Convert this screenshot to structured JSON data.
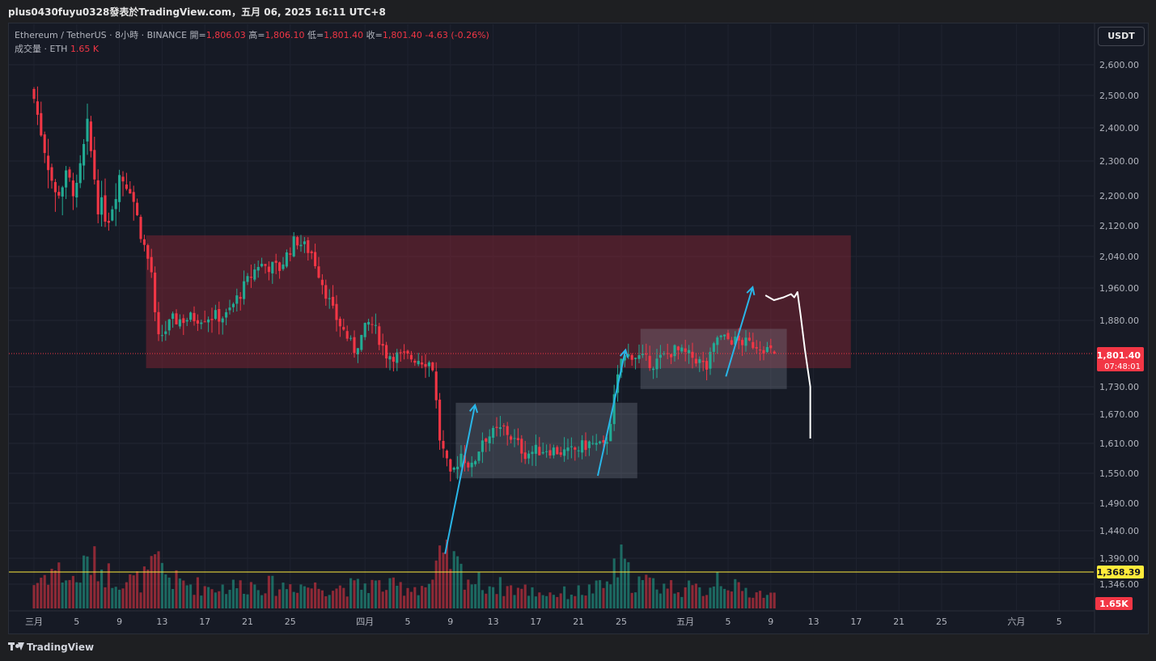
{
  "header": {
    "publish_line": "plus0430fuyu0328發表於TradingView.com，五月 06, 2025 16:11 UTC+8"
  },
  "legend": {
    "symbol": "Ethereum / TetherUS · 8小時 · BINANCE",
    "open_label": "開=",
    "open_value": "1,806.03",
    "high_label": "高=",
    "high_value": "1,806.10",
    "low_label": "低=",
    "low_value": "1,801.40",
    "close_label": "收=",
    "close_value": "1,801.40",
    "change": "-4.63 (-0.26%)",
    "volume_label": "成交量 · ETH",
    "volume_value": "1.65 K"
  },
  "currency_button": "USDT",
  "footer": {
    "brand": "TradingView"
  },
  "colors": {
    "up": "#22ab94",
    "down": "#f23645",
    "zone": "#7a2533",
    "range_box": "#8d93a0",
    "arrow": "#29b6e8",
    "drawing": "#ffffff",
    "yellow_line": "#ffeb3b",
    "background": "#161a25"
  },
  "chart_data": {
    "type": "candlestick",
    "symbol": "ETHUSDT",
    "y_ticks": [
      2600,
      2500,
      2400,
      2300,
      2200,
      2120,
      2040,
      1960,
      1880,
      1730,
      1670,
      1610,
      1550,
      1490,
      1440,
      1390,
      1346
    ],
    "y_tick_labels": [
      "2,600.00",
      "2,500.00",
      "2,400.00",
      "2,300.00",
      "2,200.00",
      "2,120.00",
      "2,040.00",
      "1,960.00",
      "1,880.00",
      "1,730.00",
      "1,670.00",
      "1,610.00",
      "1,550.00",
      "1,490.00",
      "1,440.00",
      "1,390.00",
      "1,346.00"
    ],
    "x_tick_labels": [
      "三月",
      "5",
      "9",
      "13",
      "17",
      "21",
      "25",
      "四月",
      "5",
      "9",
      "13",
      "17",
      "21",
      "25",
      "五月",
      "5",
      "9",
      "13",
      "17",
      "21",
      "25",
      "六月",
      "5"
    ],
    "x_tick_days": [
      0,
      4,
      8,
      12,
      16,
      20,
      24,
      31,
      35,
      39,
      43,
      47,
      51,
      55,
      61,
      65,
      69,
      73,
      77,
      81,
      85,
      92,
      96
    ],
    "last_price": 1801.4,
    "last_price_label": "1,801.40",
    "countdown_label": "07:48:01",
    "horizontal_line": 1368.39,
    "horizontal_line_label": "1,368.39",
    "volume_badge": "1.65K",
    "resistance_zone": {
      "from_day": 10.5,
      "to_day": 76.5,
      "top": 2095,
      "bottom": 1770
    },
    "range_boxes": [
      {
        "from_day": 39.5,
        "to_day": 56.5,
        "top": 1695,
        "bottom": 1540
      },
      {
        "from_day": 56.8,
        "to_day": 70.5,
        "top": 1860,
        "bottom": 1725
      }
    ],
    "arrows": [
      {
        "from": [
          38.5,
          1398
        ],
        "to": [
          41.3,
          1690
        ]
      },
      {
        "from": [
          52.8,
          1545
        ],
        "to": [
          55.4,
          1810
        ]
      },
      {
        "from": [
          64.8,
          1752
        ],
        "to": [
          67.3,
          1962
        ]
      }
    ],
    "drawing_path": [
      [
        68.5,
        1942
      ],
      [
        69.3,
        1930
      ],
      [
        70.2,
        1937
      ],
      [
        70.9,
        1945
      ],
      [
        71.2,
        1937
      ],
      [
        71.5,
        1950
      ],
      [
        71.8,
        1892
      ],
      [
        72.2,
        1810
      ],
      [
        72.7,
        1730
      ],
      [
        72.7,
        1620
      ]
    ],
    "anchors": [
      {
        "day": 0.0,
        "price": 2490,
        "vol": 16
      },
      {
        "day": 1.0,
        "price": 2340,
        "vol": 22
      },
      {
        "day": 2.0,
        "price": 2200,
        "vol": 26
      },
      {
        "day": 3.0,
        "price": 2250,
        "vol": 20
      },
      {
        "day": 4.0,
        "price": 2210,
        "vol": 18
      },
      {
        "day": 5.0,
        "price": 2400,
        "vol": 30
      },
      {
        "day": 6.0,
        "price": 2180,
        "vol": 28
      },
      {
        "day": 7.0,
        "price": 2140,
        "vol": 22
      },
      {
        "day": 8.0,
        "price": 2260,
        "vol": 20
      },
      {
        "day": 9.0,
        "price": 2230,
        "vol": 18
      },
      {
        "day": 10.0,
        "price": 2100,
        "vol": 18
      },
      {
        "day": 11.0,
        "price": 2000,
        "vol": 24
      },
      {
        "day": 11.5,
        "price": 1830,
        "vol": 30
      },
      {
        "day": 13.0,
        "price": 1880,
        "vol": 18
      },
      {
        "day": 16.0,
        "price": 1890,
        "vol": 14
      },
      {
        "day": 18.0,
        "price": 1890,
        "vol": 14
      },
      {
        "day": 21.0,
        "price": 2020,
        "vol": 16
      },
      {
        "day": 23.0,
        "price": 2010,
        "vol": 14
      },
      {
        "day": 24.5,
        "price": 2085,
        "vol": 16
      },
      {
        "day": 26.0,
        "price": 2050,
        "vol": 14
      },
      {
        "day": 28.0,
        "price": 1900,
        "vol": 14
      },
      {
        "day": 30.0,
        "price": 1810,
        "vol": 14
      },
      {
        "day": 31.5,
        "price": 1880,
        "vol": 16
      },
      {
        "day": 33.0,
        "price": 1800,
        "vol": 14
      },
      {
        "day": 36.0,
        "price": 1790,
        "vol": 14
      },
      {
        "day": 37.3,
        "price": 1780,
        "vol": 16
      },
      {
        "day": 38.0,
        "price": 1620,
        "vol": 30
      },
      {
        "day": 39.0,
        "price": 1540,
        "vol": 32
      },
      {
        "day": 40.0,
        "price": 1590,
        "vol": 24
      },
      {
        "day": 41.0,
        "price": 1560,
        "vol": 18
      },
      {
        "day": 42.0,
        "price": 1620,
        "vol": 16
      },
      {
        "day": 44.0,
        "price": 1640,
        "vol": 14
      },
      {
        "day": 46.0,
        "price": 1590,
        "vol": 12
      },
      {
        "day": 48.0,
        "price": 1600,
        "vol": 10
      },
      {
        "day": 50.0,
        "price": 1590,
        "vol": 10
      },
      {
        "day": 52.0,
        "price": 1610,
        "vol": 12
      },
      {
        "day": 53.5,
        "price": 1600,
        "vol": 14
      },
      {
        "day": 54.0,
        "price": 1660,
        "vol": 20
      },
      {
        "day": 55.0,
        "price": 1790,
        "vol": 30
      },
      {
        "day": 56.0,
        "price": 1800,
        "vol": 18
      },
      {
        "day": 58.0,
        "price": 1780,
        "vol": 16
      },
      {
        "day": 60.0,
        "price": 1810,
        "vol": 14
      },
      {
        "day": 62.0,
        "price": 1790,
        "vol": 12
      },
      {
        "day": 63.0,
        "price": 1770,
        "vol": 12
      },
      {
        "day": 64.0,
        "price": 1840,
        "vol": 22
      },
      {
        "day": 66.0,
        "price": 1830,
        "vol": 12
      },
      {
        "day": 68.0,
        "price": 1820,
        "vol": 10
      },
      {
        "day": 69.4,
        "price": 1801,
        "vol": 8
      }
    ]
  }
}
